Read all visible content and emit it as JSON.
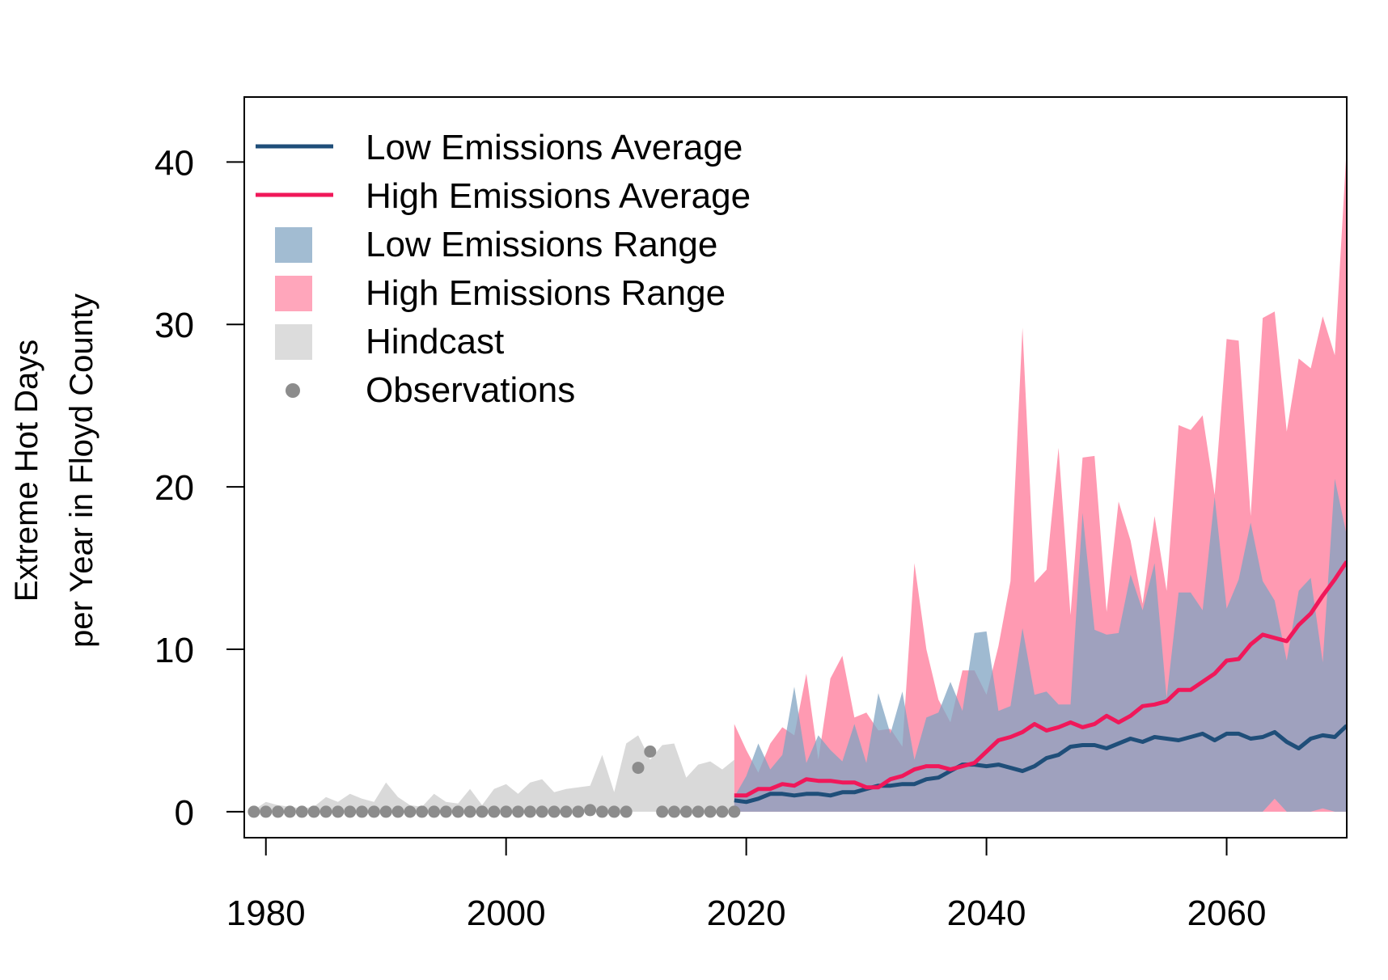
{
  "chart_data": {
    "type": "area",
    "title": "",
    "xlabel": "",
    "ylabel_lines": [
      "Extreme Hot Days",
      "per Year in Floyd County"
    ],
    "xlim": [
      1978.2,
      2070
    ],
    "ylim": [
      -1.6,
      44
    ],
    "x_ticks": [
      1980,
      2000,
      2020,
      2040,
      2060
    ],
    "y_ticks": [
      0,
      10,
      20,
      30,
      40
    ],
    "grid": false,
    "legend_position": "top-left",
    "colors": {
      "low_avg": "#1f4e79",
      "high_avg": "#f0185a",
      "low_range": "#7fa3c2",
      "high_range": "#ff9ab2",
      "overlap": "#9b82a0",
      "hindcast": "#d9d9d9",
      "observations": "#8c8c8c"
    },
    "legend": [
      {
        "label": "Low Emissions Average",
        "kind": "line",
        "color": "#1f4e79"
      },
      {
        "label": "High Emissions Average",
        "kind": "line",
        "color": "#f0185a"
      },
      {
        "label": "Low Emissions Range",
        "kind": "box",
        "color": "#a2bcd2"
      },
      {
        "label": "High Emissions Range",
        "kind": "box",
        "color": "#ffa6bb"
      },
      {
        "label": "Hindcast",
        "kind": "box",
        "color": "#dcdcdc"
      },
      {
        "label": "Observations",
        "kind": "dot",
        "color": "#8c8c8c"
      }
    ],
    "hindcast": {
      "x": [
        1979,
        1980,
        1981,
        1982,
        1983,
        1984,
        1985,
        1986,
        1987,
        1988,
        1989,
        1990,
        1991,
        1992,
        1993,
        1994,
        1995,
        1996,
        1997,
        1998,
        1999,
        2000,
        2001,
        2002,
        2003,
        2004,
        2005,
        2006,
        2007,
        2008,
        2009,
        2010,
        2011,
        2012,
        2013,
        2014,
        2015,
        2016,
        2017,
        2018,
        2019
      ],
      "high": [
        0.1,
        0.6,
        0.4,
        0.3,
        0.2,
        0.3,
        0.9,
        0.6,
        1.1,
        0.8,
        0.6,
        1.8,
        0.9,
        0.4,
        0.3,
        1.1,
        0.6,
        0.5,
        1.4,
        0.4,
        1.4,
        1.7,
        1.1,
        1.8,
        2.0,
        1.2,
        1.4,
        1.5,
        1.6,
        3.5,
        1.2,
        4.2,
        4.7,
        3.2,
        4.1,
        4.2,
        2.1,
        2.9,
        3.1,
        2.6,
        3.2
      ]
    },
    "observations": {
      "x": [
        1979,
        1980,
        1981,
        1982,
        1983,
        1984,
        1985,
        1986,
        1987,
        1988,
        1989,
        1990,
        1991,
        1992,
        1993,
        1994,
        1995,
        1996,
        1997,
        1998,
        1999,
        2000,
        2001,
        2002,
        2003,
        2004,
        2005,
        2006,
        2007,
        2008,
        2009,
        2010,
        2011,
        2012,
        2013,
        2014,
        2015,
        2016,
        2017,
        2018,
        2019
      ],
      "y": [
        0,
        0,
        0,
        0,
        0,
        0,
        0,
        0,
        0,
        0,
        0,
        0,
        0,
        0,
        0,
        0,
        0,
        0,
        0,
        0,
        0,
        0,
        0,
        0,
        0,
        0,
        0,
        0,
        0.1,
        0,
        0,
        0,
        2.7,
        3.7,
        0,
        0,
        0,
        0,
        0,
        0,
        0
      ]
    },
    "projection_x": [
      2019,
      2020,
      2021,
      2022,
      2023,
      2024,
      2025,
      2026,
      2027,
      2028,
      2029,
      2030,
      2031,
      2032,
      2033,
      2034,
      2035,
      2036,
      2037,
      2038,
      2039,
      2040,
      2041,
      2042,
      2043,
      2044,
      2045,
      2046,
      2047,
      2048,
      2049,
      2050,
      2051,
      2052,
      2053,
      2054,
      2055,
      2056,
      2057,
      2058,
      2059,
      2060,
      2061,
      2062,
      2063,
      2064,
      2065,
      2066,
      2067,
      2068,
      2069,
      2070
    ],
    "series": [
      {
        "name": "Low Emissions Average",
        "values": [
          0.7,
          0.6,
          0.8,
          1.1,
          1.1,
          1.0,
          1.1,
          1.1,
          1.0,
          1.2,
          1.2,
          1.4,
          1.6,
          1.6,
          1.7,
          1.7,
          2.0,
          2.1,
          2.5,
          2.9,
          2.9,
          2.8,
          2.9,
          2.7,
          2.5,
          2.8,
          3.3,
          3.5,
          4.0,
          4.1,
          4.1,
          3.9,
          4.2,
          4.5,
          4.3,
          4.6,
          4.5,
          4.4,
          4.6,
          4.8,
          4.4,
          4.8,
          4.8,
          4.5,
          4.6,
          4.9,
          4.3,
          3.9,
          4.5,
          4.7,
          4.6,
          5.3
        ]
      },
      {
        "name": "High Emissions Average",
        "values": [
          1.0,
          1.0,
          1.4,
          1.4,
          1.7,
          1.6,
          2.0,
          1.9,
          1.9,
          1.8,
          1.8,
          1.5,
          1.5,
          2.0,
          2.2,
          2.6,
          2.8,
          2.8,
          2.6,
          2.8,
          3.0,
          3.7,
          4.4,
          4.6,
          4.9,
          5.4,
          5.0,
          5.2,
          5.5,
          5.2,
          5.4,
          5.9,
          5.5,
          5.9,
          6.5,
          6.6,
          6.8,
          7.5,
          7.5,
          8.0,
          8.5,
          9.3,
          9.4,
          10.3,
          10.9,
          10.7,
          10.5,
          11.5,
          12.2,
          13.3,
          14.3,
          15.4
        ]
      }
    ],
    "low_range": {
      "low": [
        0,
        0,
        0,
        0,
        0,
        0,
        0,
        0,
        0,
        0,
        0,
        0,
        0,
        0,
        0,
        0,
        0,
        0,
        0,
        0,
        0,
        0,
        0,
        0,
        0,
        0,
        0,
        0,
        0,
        0,
        0,
        0,
        0,
        0,
        0,
        0,
        0,
        0,
        0,
        0,
        0,
        0,
        0,
        0,
        0,
        0.8,
        0,
        0,
        0,
        0.2,
        0,
        0
      ],
      "high": [
        0.9,
        2.2,
        4.2,
        2.6,
        3.5,
        7.7,
        3.0,
        4.7,
        3.8,
        3.1,
        5.4,
        3.0,
        7.3,
        4.8,
        7.4,
        3.2,
        5.8,
        6.1,
        8.0,
        6.2,
        11.0,
        11.1,
        6.2,
        6.5,
        11.3,
        7.2,
        7.4,
        6.6,
        6.6,
        18.4,
        11.2,
        10.9,
        11.0,
        14.6,
        12.4,
        15.3,
        7.0,
        13.5,
        13.5,
        12.4,
        19.4,
        12.5,
        14.3,
        17.8,
        14.2,
        13.0,
        9.3,
        13.6,
        14.4,
        9.2,
        20.5,
        17.0
      ]
    },
    "high_range": {
      "low": [
        0,
        0,
        0,
        0,
        0,
        0,
        0,
        0,
        0,
        0,
        0,
        0,
        0,
        0,
        0,
        0,
        0,
        0,
        0,
        0,
        0,
        0,
        0,
        0,
        0,
        0,
        0,
        0,
        0,
        0,
        0,
        0,
        0,
        0,
        0,
        0,
        0,
        0,
        0,
        0,
        0,
        0,
        0,
        0,
        0,
        0,
        0,
        0,
        0,
        0,
        0,
        0
      ],
      "high": [
        5.4,
        3.8,
        2.4,
        4.2,
        5.2,
        4.7,
        8.5,
        3.2,
        8.2,
        9.6,
        5.8,
        6.1,
        5.0,
        5.1,
        4.0,
        15.3,
        10.0,
        6.9,
        5.5,
        8.7,
        8.7,
        7.2,
        10.2,
        14.2,
        29.8,
        14.1,
        14.9,
        22.4,
        12.1,
        21.8,
        21.9,
        12.3,
        19.1,
        16.7,
        12.8,
        18.2,
        13.6,
        23.8,
        23.5,
        24.4,
        19.5,
        29.1,
        29.0,
        18.2,
        30.4,
        30.8,
        23.4,
        27.9,
        27.3,
        30.5,
        28.1,
        41.0
      ]
    }
  }
}
